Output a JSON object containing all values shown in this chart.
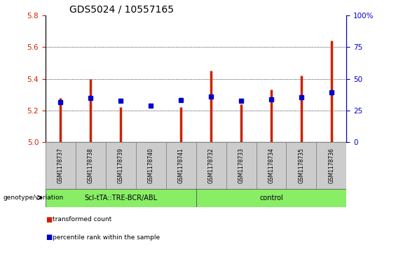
{
  "title": "GDS5024 / 10557165",
  "samples": [
    "GSM1178737",
    "GSM1178738",
    "GSM1178739",
    "GSM1178740",
    "GSM1178741",
    "GSM1178732",
    "GSM1178733",
    "GSM1178734",
    "GSM1178735",
    "GSM1178736"
  ],
  "red_values": [
    5.28,
    5.4,
    5.22,
    5.002,
    5.22,
    5.45,
    5.24,
    5.33,
    5.42,
    5.64
  ],
  "blue_values": [
    5.253,
    5.278,
    5.263,
    5.232,
    5.265,
    5.288,
    5.263,
    5.268,
    5.282,
    5.312
  ],
  "y_min": 5.0,
  "y_max": 5.8,
  "y_ticks_left": [
    5.0,
    5.2,
    5.4,
    5.6,
    5.8
  ],
  "y_ticks_right": [
    0,
    25,
    50,
    75,
    100
  ],
  "y_ticks_right_labels": [
    "0",
    "25",
    "50",
    "75",
    "100%"
  ],
  "bar_color": "#cc2200",
  "dot_color": "#0000cc",
  "group1_label": "Scl-tTA::TRE-BCR/ABL",
  "group2_label": "control",
  "group_bg_color": "#88ee66",
  "sample_box_color": "#cccccc",
  "legend_red_label": "transformed count",
  "legend_blue_label": "percentile rank within the sample",
  "genotype_label": "genotype/variation",
  "title_fontsize": 10,
  "tick_fontsize": 7.5,
  "label_fontsize": 7
}
